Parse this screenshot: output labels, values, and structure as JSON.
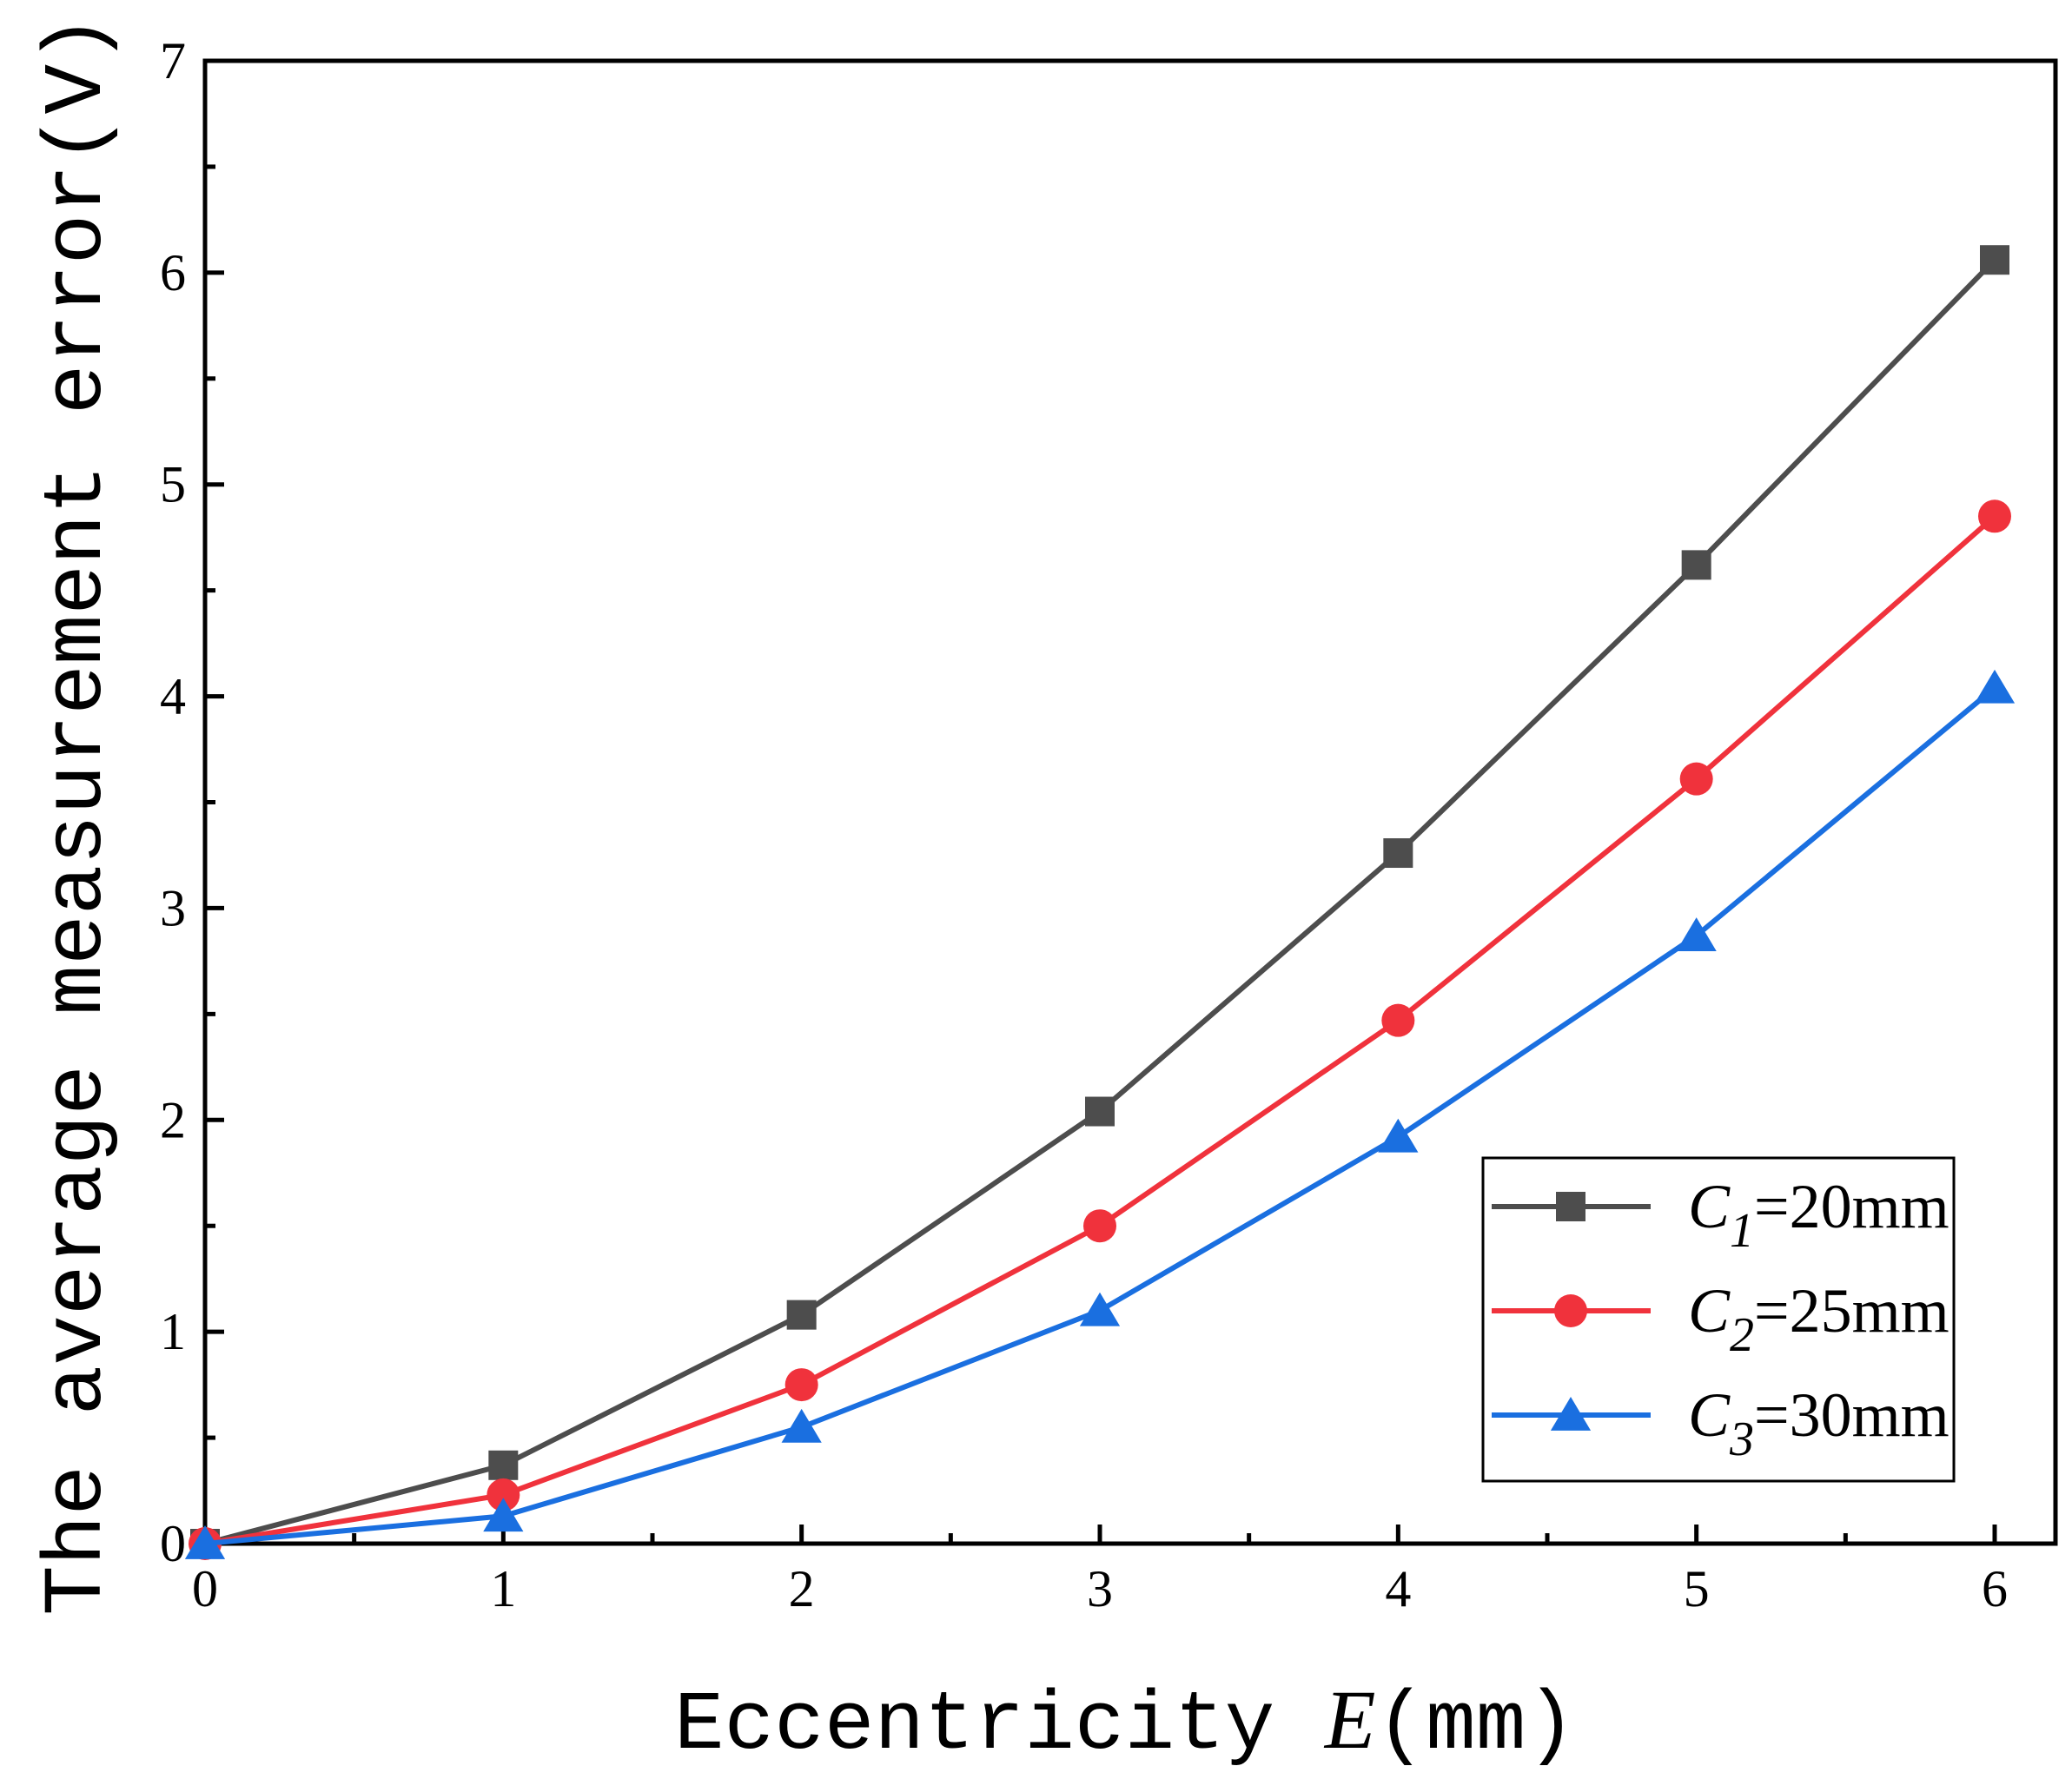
{
  "chart_data": {
    "type": "line",
    "xlabel_prefix": "Eccentricity ",
    "xlabel_var": "E",
    "xlabel_suffix": "(mm)",
    "ylabel": "The average measurement error(V)",
    "xlim": [
      0,
      6
    ],
    "ylim": [
      0,
      7
    ],
    "xticks": [
      "0",
      "1",
      "2",
      "3",
      "4",
      "5",
      "6"
    ],
    "yticks": [
      "0",
      "1",
      "2",
      "3",
      "4",
      "5",
      "6",
      "7"
    ],
    "grid": false,
    "legend_position": "bottom-right",
    "x": [
      0,
      1,
      2,
      3,
      4,
      5,
      6
    ],
    "series": [
      {
        "name": "C1=20mm",
        "sym": "C",
        "sub": "1",
        "rest": "=20mm",
        "color": "#4d4d4d",
        "marker": "square",
        "values": [
          0.0,
          0.37,
          1.08,
          2.04,
          3.26,
          4.62,
          6.06
        ]
      },
      {
        "name": "C2=25mm",
        "sym": "C",
        "sub": "2",
        "rest": "=25mm",
        "color": "#f0323c",
        "marker": "circle",
        "values": [
          0.0,
          0.23,
          0.75,
          1.5,
          2.47,
          3.61,
          4.85
        ]
      },
      {
        "name": "C3=30mm",
        "sym": "C",
        "sub": "3",
        "rest": "=30mm",
        "color": "#1a6fe0",
        "marker": "triangle",
        "values": [
          0.0,
          0.13,
          0.55,
          1.1,
          1.92,
          2.87,
          4.04
        ]
      }
    ]
  }
}
